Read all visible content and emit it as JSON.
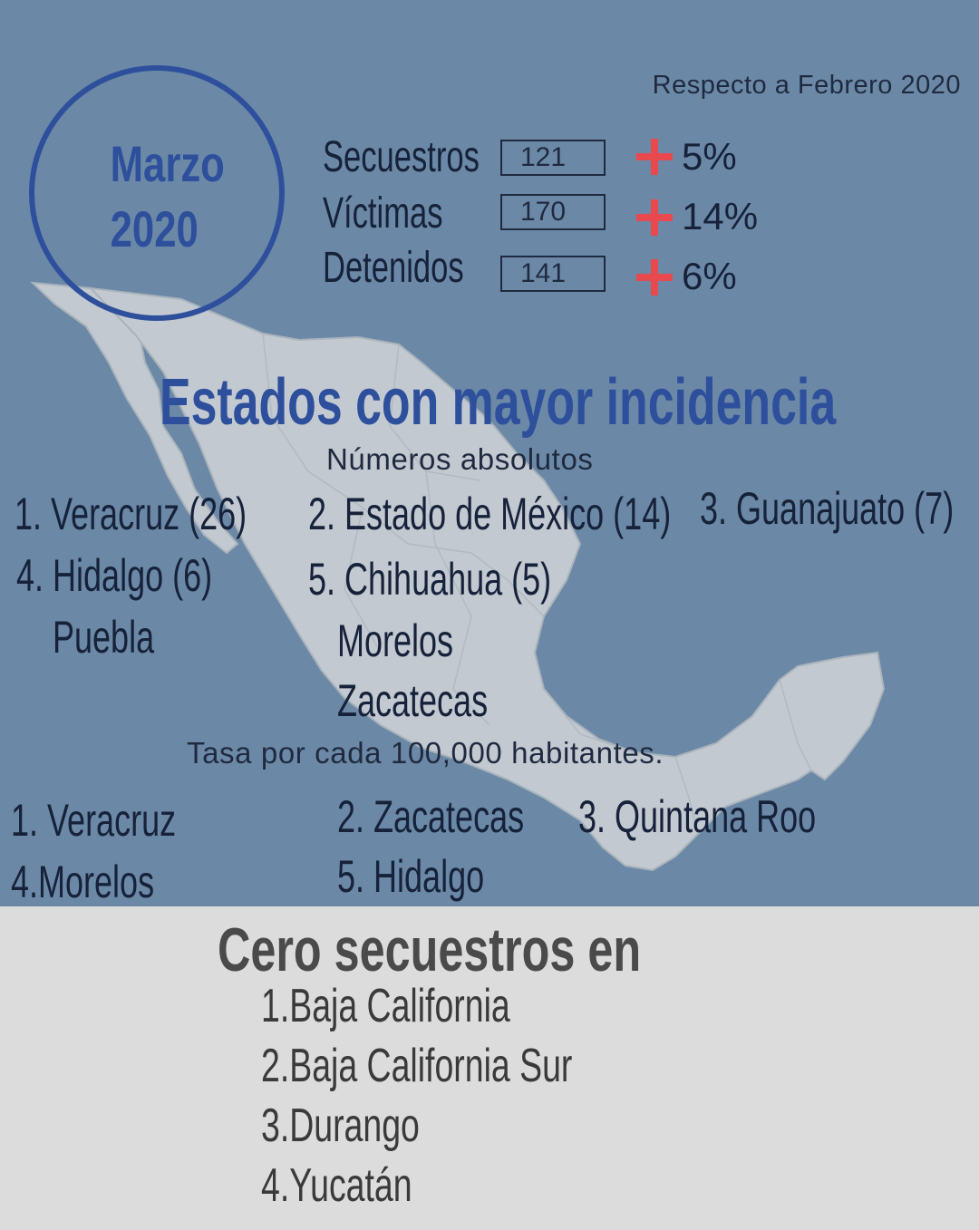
{
  "header": {
    "month": "Marzo",
    "year": "2020",
    "comparison": "Respecto a Febrero 2020"
  },
  "stats": [
    {
      "label": "Secuestros",
      "value": "121",
      "change": "5%"
    },
    {
      "label": "Víctimas",
      "value": "170",
      "change": "14%"
    },
    {
      "label": "Detenidos",
      "value": "141",
      "change": "6%"
    }
  ],
  "estados": {
    "title": "Estados con mayor incidencia",
    "absolute_subtitle": "Números absolutos",
    "absolute": [
      "1. Veracruz (26)",
      "2. Estado de México (14)",
      "3. Guanajuato (7)",
      "4. Hidalgo (6)",
      "5. Chihuahua (5)",
      "Puebla",
      "Morelos",
      "Zacatecas"
    ],
    "rate_subtitle": "Tasa por cada 100,000 habitantes.",
    "rate": [
      "1. Veracruz",
      "2. Zacatecas",
      "3. Quintana Roo",
      "4.Morelos",
      "5. Hidalgo"
    ]
  },
  "cero": {
    "title": "Cero secuestros en",
    "items": [
      "1.Baja California",
      "2.Baja California Sur",
      "3.Durango",
      "4.Yucatán"
    ]
  },
  "colors": {
    "background": "#6b89a6",
    "accent_blue": "#2e4f9c",
    "increase_red": "#e8494f",
    "map_fill": "#c7cdd3",
    "bottom_panel": "#dcdcdc"
  }
}
